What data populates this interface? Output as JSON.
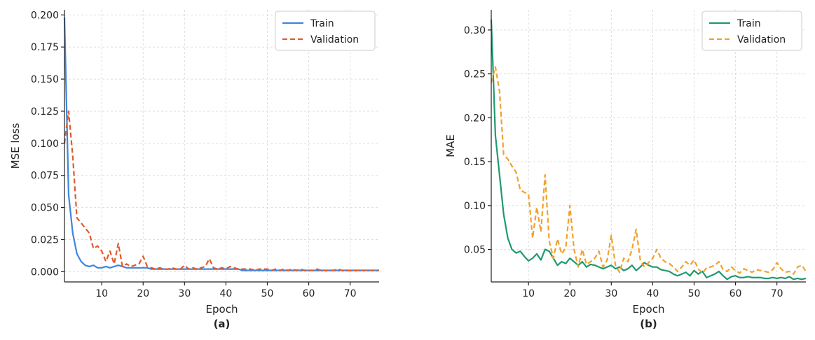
{
  "chart_data": [
    {
      "type": "line",
      "caption": "(a)",
      "xlabel": "Epoch",
      "ylabel": "MSE loss",
      "xlim": [
        1,
        77
      ],
      "ylim": [
        -0.008,
        0.204
      ],
      "xticks": [
        10,
        20,
        30,
        40,
        50,
        60,
        70
      ],
      "yticks": [
        0.0,
        0.025,
        0.05,
        0.075,
        0.1,
        0.125,
        0.15,
        0.175,
        0.2
      ],
      "ytick_labels": [
        "0.000",
        "0.025",
        "0.050",
        "0.075",
        "0.100",
        "0.125",
        "0.150",
        "0.175",
        "0.200"
      ],
      "xtick_labels": [
        "10",
        "20",
        "30",
        "40",
        "50",
        "60",
        "70"
      ],
      "grid": true,
      "legend": "top-right",
      "series": [
        {
          "name": "Train",
          "color": "#3d85e0",
          "dash": "solid",
          "x": [
            1,
            2,
            3,
            4,
            5,
            6,
            7,
            8,
            9,
            10,
            11,
            12,
            13,
            14,
            15,
            16,
            17,
            18,
            19,
            20,
            21,
            22,
            23,
            24,
            25,
            26,
            27,
            28,
            29,
            30,
            31,
            32,
            33,
            34,
            35,
            36,
            37,
            38,
            39,
            40,
            41,
            42,
            43,
            44,
            45,
            46,
            47,
            48,
            49,
            50,
            51,
            52,
            53,
            54,
            55,
            56,
            57,
            58,
            59,
            60,
            61,
            62,
            63,
            64,
            65,
            66,
            67,
            68,
            69,
            70,
            71,
            72,
            73,
            74,
            75,
            76,
            77
          ],
          "y": [
            0.198,
            0.06,
            0.03,
            0.014,
            0.008,
            0.005,
            0.004,
            0.005,
            0.003,
            0.003,
            0.004,
            0.003,
            0.004,
            0.005,
            0.004,
            0.003,
            0.003,
            0.003,
            0.003,
            0.003,
            0.003,
            0.002,
            0.002,
            0.002,
            0.002,
            0.002,
            0.002,
            0.002,
            0.002,
            0.002,
            0.002,
            0.002,
            0.002,
            0.002,
            0.002,
            0.002,
            0.002,
            0.002,
            0.002,
            0.002,
            0.002,
            0.002,
            0.002,
            0.001,
            0.001,
            0.001,
            0.001,
            0.001,
            0.001,
            0.001,
            0.001,
            0.001,
            0.001,
            0.001,
            0.001,
            0.001,
            0.001,
            0.001,
            0.001,
            0.001,
            0.001,
            0.001,
            0.001,
            0.001,
            0.001,
            0.001,
            0.001,
            0.001,
            0.001,
            0.001,
            0.001,
            0.001,
            0.001,
            0.001,
            0.001,
            0.001,
            0.001
          ]
        },
        {
          "name": "Validation",
          "color": "#e05a2b",
          "dash": "dashed",
          "x": [
            1,
            2,
            3,
            4,
            5,
            6,
            7,
            8,
            9,
            10,
            11,
            12,
            13,
            14,
            15,
            16,
            17,
            18,
            19,
            20,
            21,
            22,
            23,
            24,
            25,
            26,
            27,
            28,
            29,
            30,
            31,
            32,
            33,
            34,
            35,
            36,
            37,
            38,
            39,
            40,
            41,
            42,
            43,
            44,
            45,
            46,
            47,
            48,
            49,
            50,
            51,
            52,
            53,
            54,
            55,
            56,
            57,
            58,
            59,
            60,
            61,
            62,
            63,
            64,
            65,
            66,
            67,
            68,
            69,
            70,
            71,
            72,
            73,
            74,
            75,
            76,
            77
          ],
          "y": [
            0.1,
            0.125,
            0.09,
            0.042,
            0.038,
            0.034,
            0.03,
            0.018,
            0.02,
            0.016,
            0.008,
            0.016,
            0.006,
            0.022,
            0.004,
            0.006,
            0.004,
            0.005,
            0.006,
            0.012,
            0.004,
            0.003,
            0.002,
            0.003,
            0.002,
            0.002,
            0.003,
            0.002,
            0.002,
            0.005,
            0.002,
            0.003,
            0.002,
            0.003,
            0.004,
            0.01,
            0.003,
            0.002,
            0.003,
            0.002,
            0.004,
            0.003,
            0.002,
            0.002,
            0.002,
            0.002,
            0.001,
            0.002,
            0.002,
            0.002,
            0.001,
            0.002,
            0.001,
            0.002,
            0.001,
            0.002,
            0.001,
            0.002,
            0.001,
            0.001,
            0.001,
            0.002,
            0.001,
            0.001,
            0.001,
            0.001,
            0.002,
            0.001,
            0.001,
            0.001,
            0.001,
            0.001,
            0.001,
            0.001,
            0.001,
            0.001,
            0.001
          ]
        }
      ]
    },
    {
      "type": "line",
      "caption": "(b)",
      "xlabel": "Epoch",
      "ylabel": "MAE",
      "xlim": [
        1,
        77
      ],
      "ylim": [
        0.013,
        0.323
      ],
      "xticks": [
        10,
        20,
        30,
        40,
        50,
        60,
        70
      ],
      "yticks": [
        0.05,
        0.1,
        0.15,
        0.2,
        0.25,
        0.3
      ],
      "ytick_labels": [
        "0.05",
        "0.10",
        "0.15",
        "0.20",
        "0.25",
        "0.30"
      ],
      "xtick_labels": [
        "10",
        "20",
        "30",
        "40",
        "50",
        "60",
        "70"
      ],
      "grid": true,
      "legend": "top-right",
      "series": [
        {
          "name": "Train",
          "color": "#1f9a6c",
          "dash": "solid",
          "x": [
            1,
            2,
            3,
            4,
            5,
            6,
            7,
            8,
            9,
            10,
            11,
            12,
            13,
            14,
            15,
            16,
            17,
            18,
            19,
            20,
            21,
            22,
            23,
            24,
            25,
            26,
            27,
            28,
            29,
            30,
            31,
            32,
            33,
            34,
            35,
            36,
            37,
            38,
            39,
            40,
            41,
            42,
            43,
            44,
            45,
            46,
            47,
            48,
            49,
            50,
            51,
            52,
            53,
            54,
            55,
            56,
            57,
            58,
            59,
            60,
            61,
            62,
            63,
            64,
            65,
            66,
            67,
            68,
            69,
            70,
            71,
            72,
            73,
            74,
            75,
            76,
            77
          ],
          "y": [
            0.312,
            0.18,
            0.135,
            0.09,
            0.063,
            0.05,
            0.046,
            0.048,
            0.042,
            0.037,
            0.04,
            0.045,
            0.038,
            0.05,
            0.048,
            0.04,
            0.032,
            0.036,
            0.034,
            0.04,
            0.036,
            0.032,
            0.036,
            0.03,
            0.033,
            0.032,
            0.03,
            0.028,
            0.03,
            0.032,
            0.028,
            0.03,
            0.026,
            0.028,
            0.032,
            0.026,
            0.03,
            0.035,
            0.032,
            0.03,
            0.03,
            0.027,
            0.026,
            0.025,
            0.022,
            0.02,
            0.022,
            0.024,
            0.02,
            0.026,
            0.022,
            0.025,
            0.018,
            0.02,
            0.022,
            0.025,
            0.02,
            0.016,
            0.019,
            0.02,
            0.018,
            0.018,
            0.019,
            0.018,
            0.018,
            0.018,
            0.017,
            0.017,
            0.018,
            0.017,
            0.018,
            0.017,
            0.019,
            0.016,
            0.017,
            0.016,
            0.017
          ]
        },
        {
          "name": "Validation",
          "color": "#f2a12b",
          "dash": "dashed",
          "x": [
            1,
            2,
            3,
            4,
            5,
            6,
            7,
            8,
            9,
            10,
            11,
            12,
            13,
            14,
            15,
            16,
            17,
            18,
            19,
            20,
            21,
            22,
            23,
            24,
            25,
            26,
            27,
            28,
            29,
            30,
            31,
            32,
            33,
            34,
            35,
            36,
            37,
            38,
            39,
            40,
            41,
            42,
            43,
            44,
            45,
            46,
            47,
            48,
            49,
            50,
            51,
            52,
            53,
            54,
            55,
            56,
            57,
            58,
            59,
            60,
            61,
            62,
            63,
            64,
            65,
            66,
            67,
            68,
            69,
            70,
            71,
            72,
            73,
            74,
            75,
            76,
            77
          ],
          "y": [
            0.24,
            0.258,
            0.23,
            0.158,
            0.153,
            0.145,
            0.138,
            0.118,
            0.115,
            0.113,
            0.063,
            0.098,
            0.07,
            0.135,
            0.06,
            0.04,
            0.062,
            0.045,
            0.052,
            0.1,
            0.05,
            0.03,
            0.05,
            0.033,
            0.036,
            0.04,
            0.048,
            0.03,
            0.038,
            0.066,
            0.032,
            0.024,
            0.04,
            0.036,
            0.05,
            0.073,
            0.038,
            0.03,
            0.035,
            0.04,
            0.05,
            0.04,
            0.036,
            0.034,
            0.03,
            0.025,
            0.03,
            0.036,
            0.032,
            0.038,
            0.028,
            0.023,
            0.029,
            0.03,
            0.032,
            0.036,
            0.027,
            0.025,
            0.03,
            0.026,
            0.023,
            0.028,
            0.026,
            0.024,
            0.027,
            0.026,
            0.025,
            0.024,
            0.027,
            0.035,
            0.028,
            0.024,
            0.025,
            0.022,
            0.03,
            0.032,
            0.025
          ]
        }
      ]
    }
  ]
}
